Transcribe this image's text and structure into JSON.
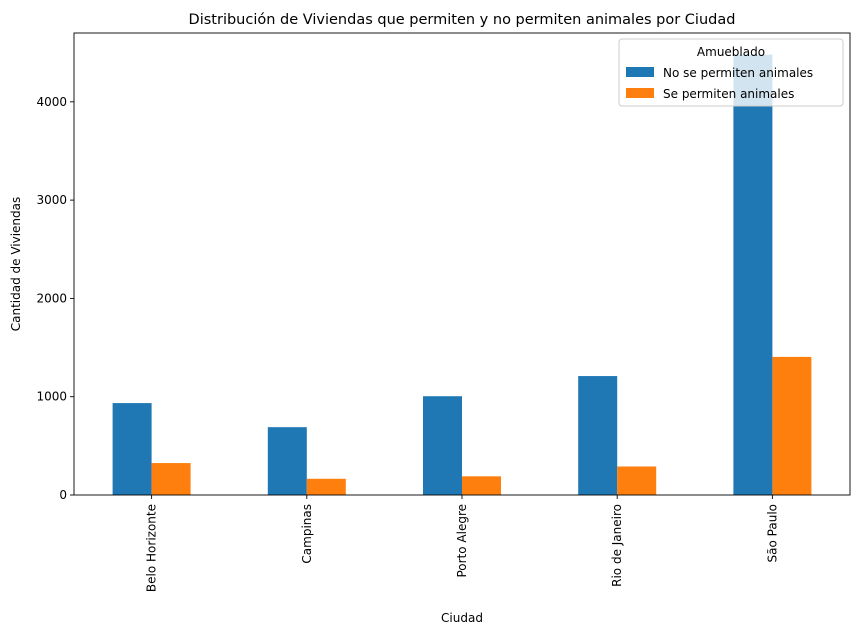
{
  "chart_data": {
    "type": "bar",
    "title": "Distribución de Viviendas que permiten y no permiten animales por Ciudad",
    "xlabel": "Ciudad",
    "ylabel": "Cantidad de Viviendas",
    "ylim": [
      0,
      4700
    ],
    "yticks": [
      0,
      1000,
      2000,
      3000,
      4000
    ],
    "categories": [
      "Belo Horizonte",
      "Campinas",
      "Porto Alegre",
      "Rio de Janeiro",
      "São Paulo"
    ],
    "series": [
      {
        "name": "No se permiten animales",
        "color": "#1f77b4",
        "values": [
          935,
          690,
          1005,
          1210,
          4480
        ]
      },
      {
        "name": "Se permiten animales",
        "color": "#ff7f0e",
        "values": [
          325,
          165,
          190,
          290,
          1405
        ]
      }
    ],
    "legend": {
      "title": "Amueblado",
      "placement": "top-right"
    },
    "grid": false
  }
}
